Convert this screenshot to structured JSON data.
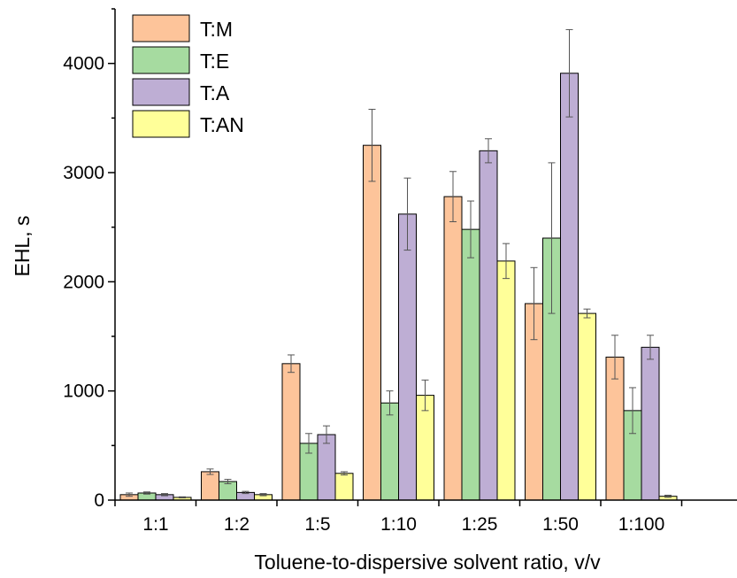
{
  "chart_data": {
    "type": "bar",
    "title": "",
    "xlabel": "Toluene-to-dispersive solvent ratio, v/v",
    "ylabel": "EHL, s",
    "categories": [
      "1:1",
      "1:2",
      "1:5",
      "1:10",
      "1:25",
      "1:50",
      "1:100"
    ],
    "ylim": [
      0,
      4500
    ],
    "yticks": [
      "0",
      "1000",
      "2000",
      "3000",
      "4000"
    ],
    "grid": false,
    "legend_position": "top-left",
    "series": [
      {
        "name": "T:M",
        "color": "#FDC49A",
        "values": [
          50,
          260,
          1250,
          3250,
          2780,
          1800,
          1310
        ],
        "errors": [
          15,
          25,
          80,
          330,
          230,
          330,
          200
        ]
      },
      {
        "name": "T:E",
        "color": "#A6DBA0",
        "values": [
          65,
          170,
          520,
          890,
          2480,
          2400,
          820
        ],
        "errors": [
          10,
          20,
          90,
          110,
          260,
          690,
          210
        ]
      },
      {
        "name": "T:A",
        "color": "#BEAED4",
        "values": [
          50,
          70,
          600,
          2620,
          3200,
          3910,
          1400
        ],
        "errors": [
          10,
          10,
          80,
          330,
          110,
          400,
          110
        ]
      },
      {
        "name": "T:AN",
        "color": "#FFFF99",
        "values": [
          25,
          50,
          245,
          960,
          2190,
          1710,
          35
        ],
        "errors": [
          5,
          10,
          15,
          140,
          160,
          40,
          10
        ]
      }
    ]
  }
}
